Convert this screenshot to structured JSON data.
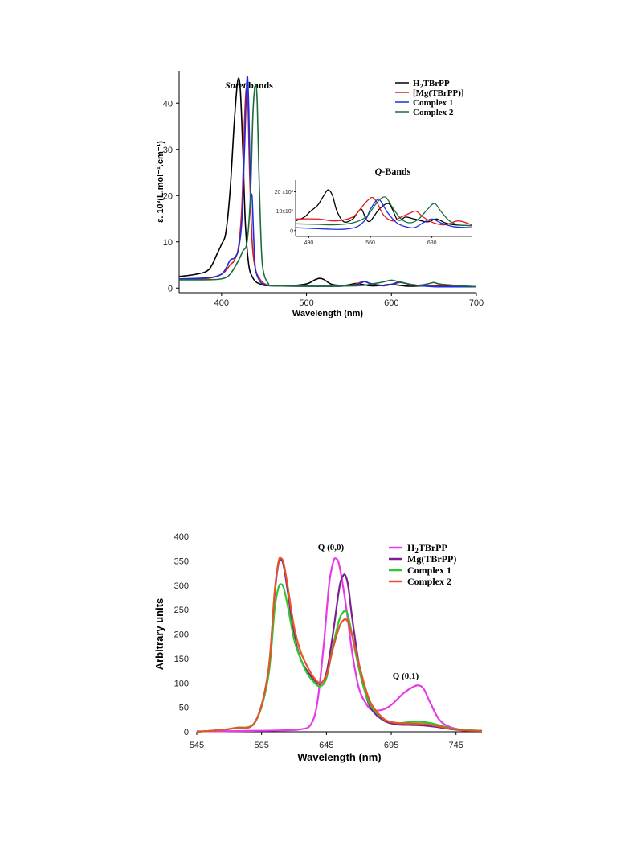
{
  "chart_data": [
    {
      "type": "line",
      "xlabel": "Wavelength (nm)",
      "ylabel": "ε. 10³(L.mol⁻¹.cm⁻¹)",
      "xlim": [
        350,
        700
      ],
      "ylim": [
        -1,
        47
      ],
      "xticks": [
        400,
        500,
        600,
        700
      ],
      "yticks": [
        0,
        10,
        20,
        30,
        40
      ],
      "annotations": {
        "soret_prefix": "Soret",
        "soret_suffix": " bands"
      },
      "legend_position": "top-right",
      "series": [
        {
          "name": "H₂TBrPP",
          "color": "#000000",
          "x": [
            350,
            370,
            385,
            395,
            400,
            405,
            410,
            415,
            419,
            422,
            425,
            428,
            432,
            436,
            440,
            445,
            450,
            460,
            480,
            500,
            510,
            515,
            520,
            530,
            545,
            555,
            560,
            575,
            590,
            600,
            620,
            640,
            650,
            660,
            680,
            700
          ],
          "y": [
            2.5,
            3.0,
            4.0,
            7.5,
            9.5,
            12.0,
            21.0,
            36.0,
            44.8,
            43.0,
            30.0,
            14.0,
            5.0,
            2.5,
            1.4,
            0.9,
            0.6,
            0.5,
            0.5,
            0.9,
            1.8,
            2.1,
            1.9,
            0.8,
            0.6,
            0.9,
            1.0,
            0.5,
            0.6,
            0.8,
            0.4,
            0.5,
            0.6,
            0.5,
            0.3,
            0.3
          ]
        },
        {
          "name": "[Mg(TBrPP)]",
          "color": "#e01b1b",
          "x": [
            350,
            380,
            400,
            410,
            415,
            420,
            424,
            427,
            429,
            431,
            433,
            436,
            440,
            445,
            450,
            460,
            500,
            530,
            550,
            560,
            568,
            575,
            590,
            600,
            610,
            620,
            630,
            650,
            700
          ],
          "y": [
            2.0,
            2.0,
            3.0,
            5.0,
            6.0,
            9.0,
            18.0,
            36.0,
            43.0,
            40.0,
            25.0,
            10.0,
            4.0,
            2.0,
            1.0,
            0.5,
            0.4,
            0.4,
            0.5,
            1.0,
            1.5,
            1.0,
            0.6,
            0.8,
            1.2,
            0.9,
            0.6,
            0.4,
            0.3
          ]
        },
        {
          "name": "Complex 1",
          "color": "#1a2ee0",
          "x": [
            350,
            380,
            400,
            410,
            415,
            420,
            424,
            427,
            430,
            432,
            434,
            436,
            438,
            440,
            445,
            450,
            460,
            500,
            540,
            560,
            568,
            575,
            590,
            600,
            610,
            625,
            650,
            700
          ],
          "y": [
            2.0,
            2.2,
            3.0,
            6.0,
            6.5,
            8.5,
            15.0,
            30.0,
            45.5,
            39.0,
            22.0,
            19.5,
            10.0,
            4.0,
            1.5,
            0.8,
            0.5,
            0.4,
            0.4,
            0.8,
            1.4,
            1.0,
            0.5,
            0.8,
            1.3,
            0.7,
            0.3,
            0.3
          ]
        },
        {
          "name": "Complex 2",
          "color": "#1b6e3a",
          "x": [
            350,
            380,
            400,
            410,
            420,
            425,
            430,
            434,
            437,
            440,
            442,
            444,
            447,
            450,
            455,
            460,
            500,
            560,
            580,
            590,
            600,
            610,
            630,
            645,
            650,
            660,
            700
          ],
          "y": [
            1.8,
            1.8,
            2.0,
            3.0,
            6.0,
            8.0,
            10.0,
            20.0,
            38.0,
            44.0,
            40.0,
            25.0,
            8.0,
            3.0,
            1.0,
            0.5,
            0.4,
            0.5,
            1.0,
            1.3,
            1.7,
            1.3,
            0.6,
            1.0,
            1.2,
            0.8,
            0.3
          ]
        }
      ],
      "inset": {
        "title_prefix": "Q",
        "title_suffix": "-Bands",
        "xlim": [
          475,
          675
        ],
        "ylim": [
          -3000,
          26000
        ],
        "xticks": [
          490,
          560,
          630
        ],
        "ytick_values": [
          0,
          10000,
          20000
        ],
        "ytick_labels": [
          "0",
          "10x10³",
          "20 x10³"
        ],
        "series": [
          {
            "name": "H₂TBrPP",
            "color": "#000000",
            "x": [
              475,
              485,
              492,
              500,
              507,
              512,
              517,
              522,
              530,
              540,
              545,
              550,
              555,
              560,
              570,
              580,
              585,
              590,
              595,
              600,
              610,
              625,
              635,
              645,
              655,
              675
            ],
            "y": [
              5000,
              7000,
              10000,
              13000,
              18000,
              21000,
              18000,
              10000,
              4500,
              6000,
              9000,
              11000,
              6000,
              5000,
              11000,
              14000,
              11000,
              6000,
              5500,
              7000,
              6000,
              4500,
              6000,
              4000,
              3000,
              2500
            ]
          },
          {
            "name": "[Mg(TBrPP)]",
            "color": "#e01b1b",
            "x": [
              475,
              500,
              520,
              540,
              550,
              558,
              563,
              568,
              575,
              585,
              595,
              605,
              612,
              620,
              632,
              645,
              660,
              675
            ],
            "y": [
              6000,
              6000,
              5000,
              7000,
              12000,
              16000,
              17000,
              14000,
              8000,
              5000,
              7000,
              9000,
              10000,
              7000,
              4000,
              3000,
              5000,
              3000
            ]
          },
          {
            "name": "Complex 1",
            "color": "#1a2ee0",
            "x": [
              475,
              490,
              500,
              510,
              530,
              545,
              555,
              560,
              568,
              572,
              580,
              590,
              600,
              610,
              620,
              630,
              640,
              655,
              675
            ],
            "y": [
              1500,
              1200,
              1000,
              800,
              700,
              2000,
              6000,
              11000,
              16000,
              15000,
              9000,
              4000,
              2000,
              1500,
              4000,
              6000,
              4000,
              2000,
              1500
            ]
          },
          {
            "name": "Complex 2",
            "color": "#1b6e3a",
            "x": [
              475,
              500,
              520,
              540,
              555,
              565,
              572,
              578,
              585,
              595,
              605,
              615,
              625,
              633,
              640,
              650,
              660,
              675
            ],
            "y": [
              3500,
              3200,
              3000,
              4000,
              7000,
              13000,
              16500,
              17000,
              12000,
              6000,
              4000,
              6000,
              11000,
              14000,
              10000,
              5000,
              3000,
              2500
            ]
          }
        ]
      }
    },
    {
      "type": "line",
      "xlabel": "Wavelength (nm)",
      "ylabel": "Arbitrary units",
      "xlim": [
        545,
        765
      ],
      "ylim": [
        0,
        400
      ],
      "xticks": [
        545,
        595,
        645,
        695,
        745
      ],
      "yticks": [
        0,
        50,
        100,
        150,
        200,
        250,
        300,
        350,
        400
      ],
      "annotations": {
        "q00": "Q (0,0)",
        "q01": "Q (0,1)"
      },
      "legend_position": "top-right",
      "series": [
        {
          "name": "H₂TBrPP",
          "color": "#e83ae8",
          "x": [
            545,
            560,
            590,
            610,
            625,
            633,
            638,
            643,
            647,
            650,
            652,
            655,
            660,
            665,
            670,
            675,
            680,
            688,
            695,
            705,
            712,
            716,
            720,
            725,
            732,
            740,
            750,
            765
          ],
          "y": [
            1,
            1,
            2,
            3,
            5,
            15,
            60,
            180,
            300,
            345,
            355,
            340,
            260,
            160,
            90,
            60,
            45,
            45,
            55,
            80,
            92,
            95,
            88,
            60,
            25,
            10,
            4,
            2
          ]
        },
        {
          "name": "Mg(TBrPP)",
          "color": "#7b2090",
          "x": [
            545,
            560,
            575,
            590,
            600,
            605,
            608,
            610,
            612,
            615,
            620,
            625,
            630,
            635,
            640,
            645,
            650,
            655,
            658,
            660,
            662,
            665,
            670,
            675,
            680,
            690,
            700,
            710,
            720,
            730,
            740,
            750,
            765
          ],
          "y": [
            0,
            3,
            8,
            20,
            120,
            280,
            345,
            352,
            340,
            290,
            200,
            150,
            125,
            108,
            98,
            120,
            200,
            295,
            320,
            318,
            295,
            230,
            140,
            80,
            45,
            22,
            15,
            14,
            13,
            10,
            6,
            3,
            2
          ]
        },
        {
          "name": "Complex 1",
          "color": "#2ec82e",
          "x": [
            545,
            560,
            575,
            590,
            600,
            605,
            608,
            610,
            612,
            615,
            620,
            625,
            630,
            635,
            640,
            645,
            650,
            655,
            658,
            660,
            662,
            665,
            670,
            675,
            680,
            690,
            700,
            710,
            720,
            730,
            740,
            750,
            765
          ],
          "y": [
            0,
            3,
            8,
            20,
            110,
            250,
            295,
            302,
            295,
            260,
            190,
            150,
            120,
            103,
            93,
            110,
            175,
            230,
            245,
            248,
            235,
            195,
            130,
            80,
            50,
            25,
            18,
            20,
            20,
            15,
            8,
            4,
            2
          ]
        },
        {
          "name": "Complex 2",
          "color": "#e4552a",
          "x": [
            545,
            560,
            575,
            590,
            600,
            605,
            608,
            610,
            612,
            615,
            620,
            625,
            630,
            635,
            640,
            645,
            650,
            655,
            658,
            660,
            662,
            665,
            670,
            675,
            680,
            690,
            700,
            710,
            720,
            730,
            740,
            750,
            765
          ],
          "y": [
            0,
            3,
            8,
            20,
            120,
            285,
            348,
            355,
            345,
            300,
            215,
            165,
            135,
            112,
            100,
            115,
            170,
            215,
            228,
            230,
            222,
            195,
            140,
            90,
            55,
            25,
            18,
            17,
            16,
            12,
            7,
            3,
            2
          ]
        }
      ]
    }
  ]
}
